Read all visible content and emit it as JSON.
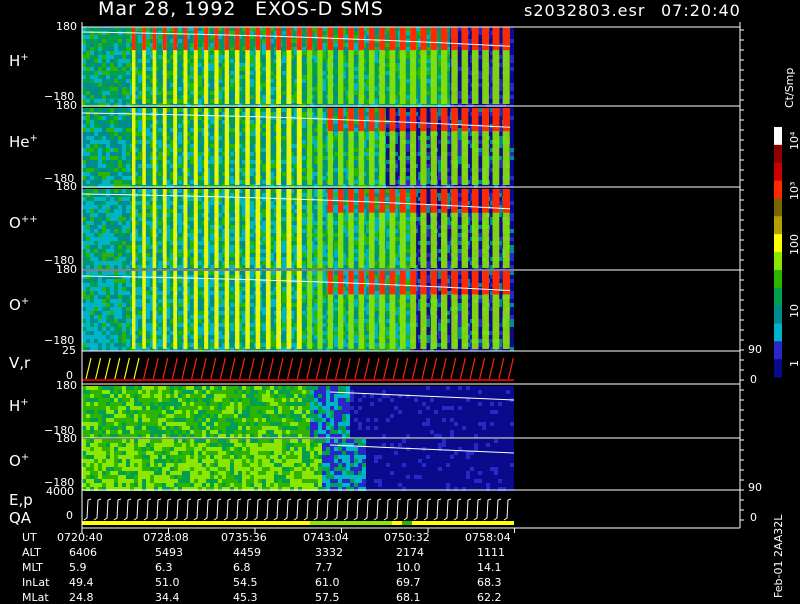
{
  "header": {
    "date": "Mar 28, 1992",
    "instrument": "EXOS-D SMS",
    "file": "s2032803.esr",
    "time": "07:20:40"
  },
  "panels": [
    {
      "label": "H",
      "charge": "+",
      "top_tick": "180",
      "bottom_tick": "−180"
    },
    {
      "label": "He",
      "charge": "+",
      "top_tick": "180",
      "bottom_tick": "−180"
    },
    {
      "label": "O",
      "charge": "++",
      "top_tick": "180",
      "bottom_tick": "−180"
    },
    {
      "label": "O",
      "charge": "+",
      "top_tick": "180",
      "bottom_tick": "−180"
    },
    {
      "label": "V,r",
      "top_tick": "25",
      "bottom_tick": "0",
      "right_top": "90",
      "right_bottom": "0"
    },
    {
      "label": "H",
      "charge": "+",
      "top_tick": "180",
      "bottom_tick": "−180"
    },
    {
      "label": "O",
      "charge": "+",
      "top_tick": "180",
      "bottom_tick": "−180"
    },
    {
      "label": "E,p",
      "label2": "QA",
      "top_tick": "4000",
      "bottom_tick": "0",
      "right_top": "90",
      "right_bottom": "0"
    }
  ],
  "colorbar": {
    "unit": "Ct/Smp",
    "labels": [
      "1",
      "10",
      "100",
      "10³",
      "10⁴"
    ],
    "colors": [
      "#0a0a8c",
      "#2828c8",
      "#00b4c8",
      "#008c8c",
      "#00a050",
      "#2db400",
      "#8ce600",
      "#ffff00",
      "#b4a000",
      "#786400",
      "#ff2800",
      "#c80000",
      "#8c0000",
      "#ffffff"
    ]
  },
  "side_text": "Feb-01  2AA32L",
  "chart_data": {
    "type": "heatmap",
    "title": "Mar 28, 1992   EXOS-D SMS",
    "time_ticks": [
      "0720:40",
      "0728:08",
      "0735:36",
      "0743:04",
      "0750:32",
      "0758:04"
    ],
    "ephemeris": [
      {
        "name": "UT",
        "values": [
          "0720:40",
          "0728:08",
          "0735:36",
          "0743:04",
          "0750:32",
          "0758:04"
        ]
      },
      {
        "name": "ALT",
        "values": [
          "6406",
          "5493",
          "4459",
          "3332",
          "2174",
          "1111"
        ]
      },
      {
        "name": "MLT",
        "values": [
          "5.9",
          "6.3",
          "6.8",
          "7.7",
          "10.0",
          "14.1"
        ]
      },
      {
        "name": "InLat",
        "values": [
          "49.4",
          "51.0",
          "54.5",
          "61.0",
          "69.7",
          "68.3"
        ]
      },
      {
        "name": "MLat",
        "values": [
          "24.8",
          "34.4",
          "45.3",
          "57.5",
          "68.1",
          "62.2"
        ]
      }
    ],
    "y_range": [
      -180,
      180
    ],
    "color_scale": "log",
    "color_range": [
      1,
      10000
    ]
  }
}
